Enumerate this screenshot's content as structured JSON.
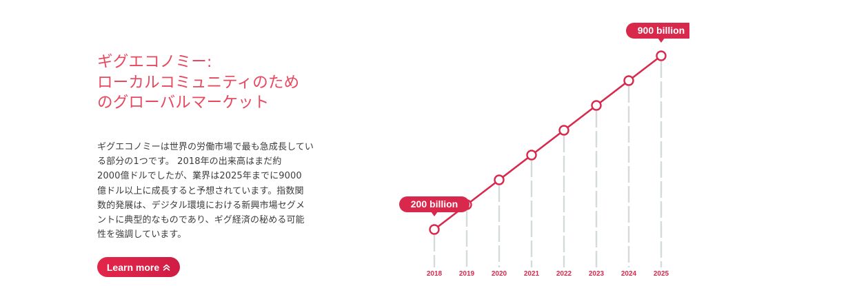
{
  "heading": {
    "lines": [
      "ギグエコノミー:",
      "ローカルコミュニティのため",
      "のグローバルマーケット"
    ]
  },
  "description": {
    "lines": [
      "ギグエコノミーは世界の労働市場で最も急成長してい",
      "る部分の1つです。 2018年の出来高はまだ約",
      "2000億ドルでしたが、業界は2025年までに9000",
      "億ドル以上に成長すると予想されています。指数関",
      "数的発展は、デジタル環境における新興市場セグメ",
      "ントに典型的なものであり、ギグ経済の秘める可能",
      "性を強調しています。"
    ]
  },
  "button": {
    "label": "Learn more",
    "icon": "double-chevron-up-icon"
  },
  "colors": {
    "accent": "#d8294c",
    "heading": "#e8485e",
    "dash": "#d5dbdd"
  },
  "chart_data": {
    "type": "line",
    "x": [
      "2018",
      "2019",
      "2020",
      "2021",
      "2022",
      "2023",
      "2024",
      "2025"
    ],
    "y": [
      200,
      300,
      400,
      500,
      600,
      700,
      800,
      900
    ],
    "annotations": [
      {
        "x": "2018",
        "label": "200 billion"
      },
      {
        "x": "2025",
        "label": "900 billion"
      }
    ],
    "title": "",
    "xlabel": "",
    "ylabel": "",
    "grid": false,
    "legend": false
  }
}
